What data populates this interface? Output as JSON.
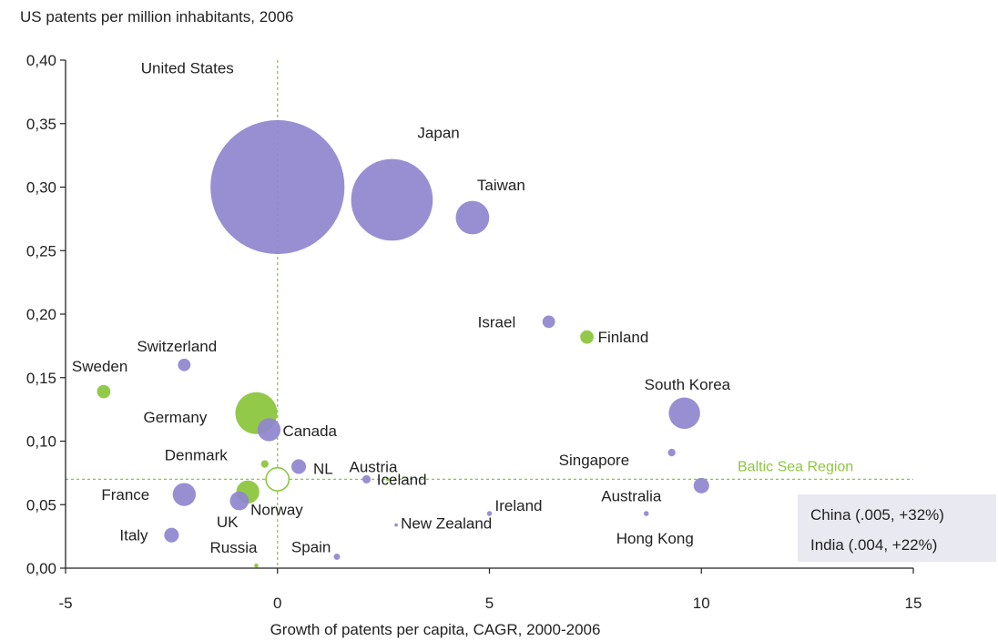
{
  "chart_data": {
    "type": "scatter",
    "title": "US patents per million inhabitants, 2006",
    "xlabel": "Growth of patents per capita, CAGR, 2000-2006",
    "ylabel": "",
    "xlim": [
      -5,
      15
    ],
    "ylim": [
      0,
      0.4
    ],
    "x_ticks": [
      "-5",
      "0",
      "5",
      "10",
      "15"
    ],
    "x_tick_values": [
      -5,
      0,
      5,
      10,
      15
    ],
    "y_ticks": [
      "0,00",
      "0,05",
      "0,10",
      "0,15",
      "0,20",
      "0,25",
      "0,30",
      "0,35",
      "0,40"
    ],
    "y_tick_values": [
      0,
      0.05,
      0.1,
      0.15,
      0.2,
      0.25,
      0.3,
      0.35,
      0.4
    ],
    "reference_lines": {
      "vertical_x": 0,
      "horizontal_y": 0.07,
      "horizontal_label": "Baltic Sea Region"
    },
    "colors": {
      "other": "#8f86cf",
      "baltic": "#8dc63f",
      "reference": "#8dc63f",
      "axis": "#222222"
    },
    "points": [
      {
        "name": "United States",
        "x": 0.0,
        "y": 0.3,
        "size": 32,
        "group": "other"
      },
      {
        "name": "Japan",
        "x": 2.7,
        "y": 0.29,
        "size": 19.5,
        "group": "other"
      },
      {
        "name": "Taiwan",
        "x": 4.6,
        "y": 0.276,
        "size": 8,
        "group": "other"
      },
      {
        "name": "Israel",
        "x": 6.4,
        "y": 0.194,
        "size": 3,
        "group": "other"
      },
      {
        "name": "Finland",
        "x": 7.3,
        "y": 0.182,
        "size": 3.2,
        "group": "baltic"
      },
      {
        "name": "South Korea",
        "x": 9.6,
        "y": 0.122,
        "size": 7.5,
        "group": "other"
      },
      {
        "name": "Singapore",
        "x": 9.3,
        "y": 0.091,
        "size": 1.8,
        "group": "other"
      },
      {
        "name": "Australia",
        "x": 10.0,
        "y": 0.065,
        "size": 3.7,
        "group": "other"
      },
      {
        "name": "Hong Kong",
        "x": 8.7,
        "y": 0.043,
        "size": 1.2,
        "group": "other"
      },
      {
        "name": "Switzerland",
        "x": -2.2,
        "y": 0.16,
        "size": 3,
        "group": "other"
      },
      {
        "name": "Sweden",
        "x": -4.1,
        "y": 0.139,
        "size": 3.2,
        "group": "baltic"
      },
      {
        "name": "Germany",
        "x": -0.5,
        "y": 0.122,
        "size": 10,
        "group": "baltic"
      },
      {
        "name": "Canada",
        "x": -0.2,
        "y": 0.109,
        "size": 5.5,
        "group": "other"
      },
      {
        "name": "Denmark",
        "x": -0.3,
        "y": 0.082,
        "size": 1.8,
        "group": "baltic"
      },
      {
        "name": "NL",
        "x": 0.5,
        "y": 0.08,
        "size": 3.5,
        "group": "other"
      },
      {
        "name": "Austria",
        "x": 2.1,
        "y": 0.07,
        "size": 2,
        "group": "other"
      },
      {
        "name": "Iceland",
        "x": 2.6,
        "y": 0.07,
        "size": 0.8,
        "group": "baltic"
      },
      {
        "name": "France",
        "x": -2.2,
        "y": 0.058,
        "size": 5.5,
        "group": "other"
      },
      {
        "name": "Norway",
        "x": -0.7,
        "y": 0.06,
        "size": 5.5,
        "group": "baltic"
      },
      {
        "name": "UK",
        "x": -0.9,
        "y": 0.053,
        "size": 4.5,
        "group": "other"
      },
      {
        "name": "Italy",
        "x": -2.5,
        "y": 0.026,
        "size": 3.5,
        "group": "other"
      },
      {
        "name": "Russia",
        "x": -0.5,
        "y": 0.002,
        "size": 1,
        "group": "baltic"
      },
      {
        "name": "Spain",
        "x": 1.4,
        "y": 0.009,
        "size": 1.5,
        "group": "other"
      },
      {
        "name": "Ireland",
        "x": 5.0,
        "y": 0.043,
        "size": 1.2,
        "group": "other"
      },
      {
        "name": "New Zealand",
        "x": 2.8,
        "y": 0.034,
        "size": 0.8,
        "group": "other"
      },
      {
        "name": "Baltic Sea Region",
        "x": 0.0,
        "y": 0.07,
        "size": 5.5,
        "group": "baltic-ref",
        "hollow": true,
        "unlabeled": true
      }
    ],
    "annotations": [
      {
        "text": "China (.005, +32%)"
      },
      {
        "text": "India   (.004, +22%)"
      }
    ]
  }
}
